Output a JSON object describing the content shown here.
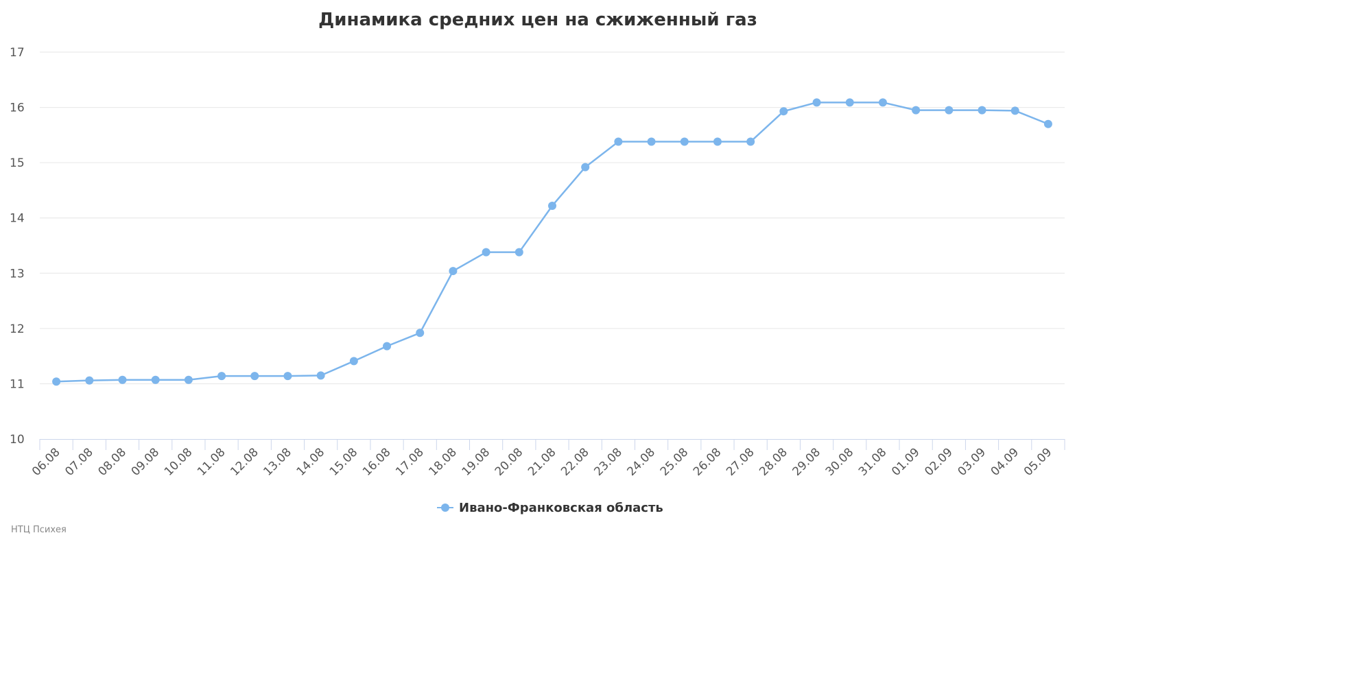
{
  "chart_data": {
    "type": "line",
    "title": "Динамика средних цен на сжиженный газ",
    "xlabel": "",
    "ylabel": "",
    "ylim": [
      10,
      17
    ],
    "yticks": [
      "10",
      "11",
      "12",
      "13",
      "14",
      "15",
      "16",
      "17"
    ],
    "grid": true,
    "legend_position": "bottom-center",
    "categories": [
      "06.08",
      "07.08",
      "08.08",
      "09.08",
      "10.08",
      "11.08",
      "12.08",
      "13.08",
      "14.08",
      "15.08",
      "16.08",
      "17.08",
      "18.08",
      "19.08",
      "20.08",
      "21.08",
      "22.08",
      "23.08",
      "24.08",
      "25.08",
      "26.08",
      "27.08",
      "28.08",
      "29.08",
      "30.08",
      "31.08",
      "01.09",
      "02.09",
      "03.09",
      "04.09",
      "05.09"
    ],
    "series": [
      {
        "name": "Ивано-Франковская область",
        "color": "#7cb5ec",
        "values": [
          11.04,
          11.06,
          11.07,
          11.07,
          11.07,
          11.14,
          11.14,
          11.14,
          11.15,
          11.41,
          11.68,
          11.92,
          13.04,
          13.38,
          13.38,
          14.22,
          14.92,
          15.38,
          15.38,
          15.38,
          15.38,
          15.38,
          15.93,
          16.09,
          16.09,
          16.09,
          15.95,
          15.95,
          15.95,
          15.94,
          15.7
        ]
      }
    ],
    "credit": "НТЦ Психея"
  }
}
